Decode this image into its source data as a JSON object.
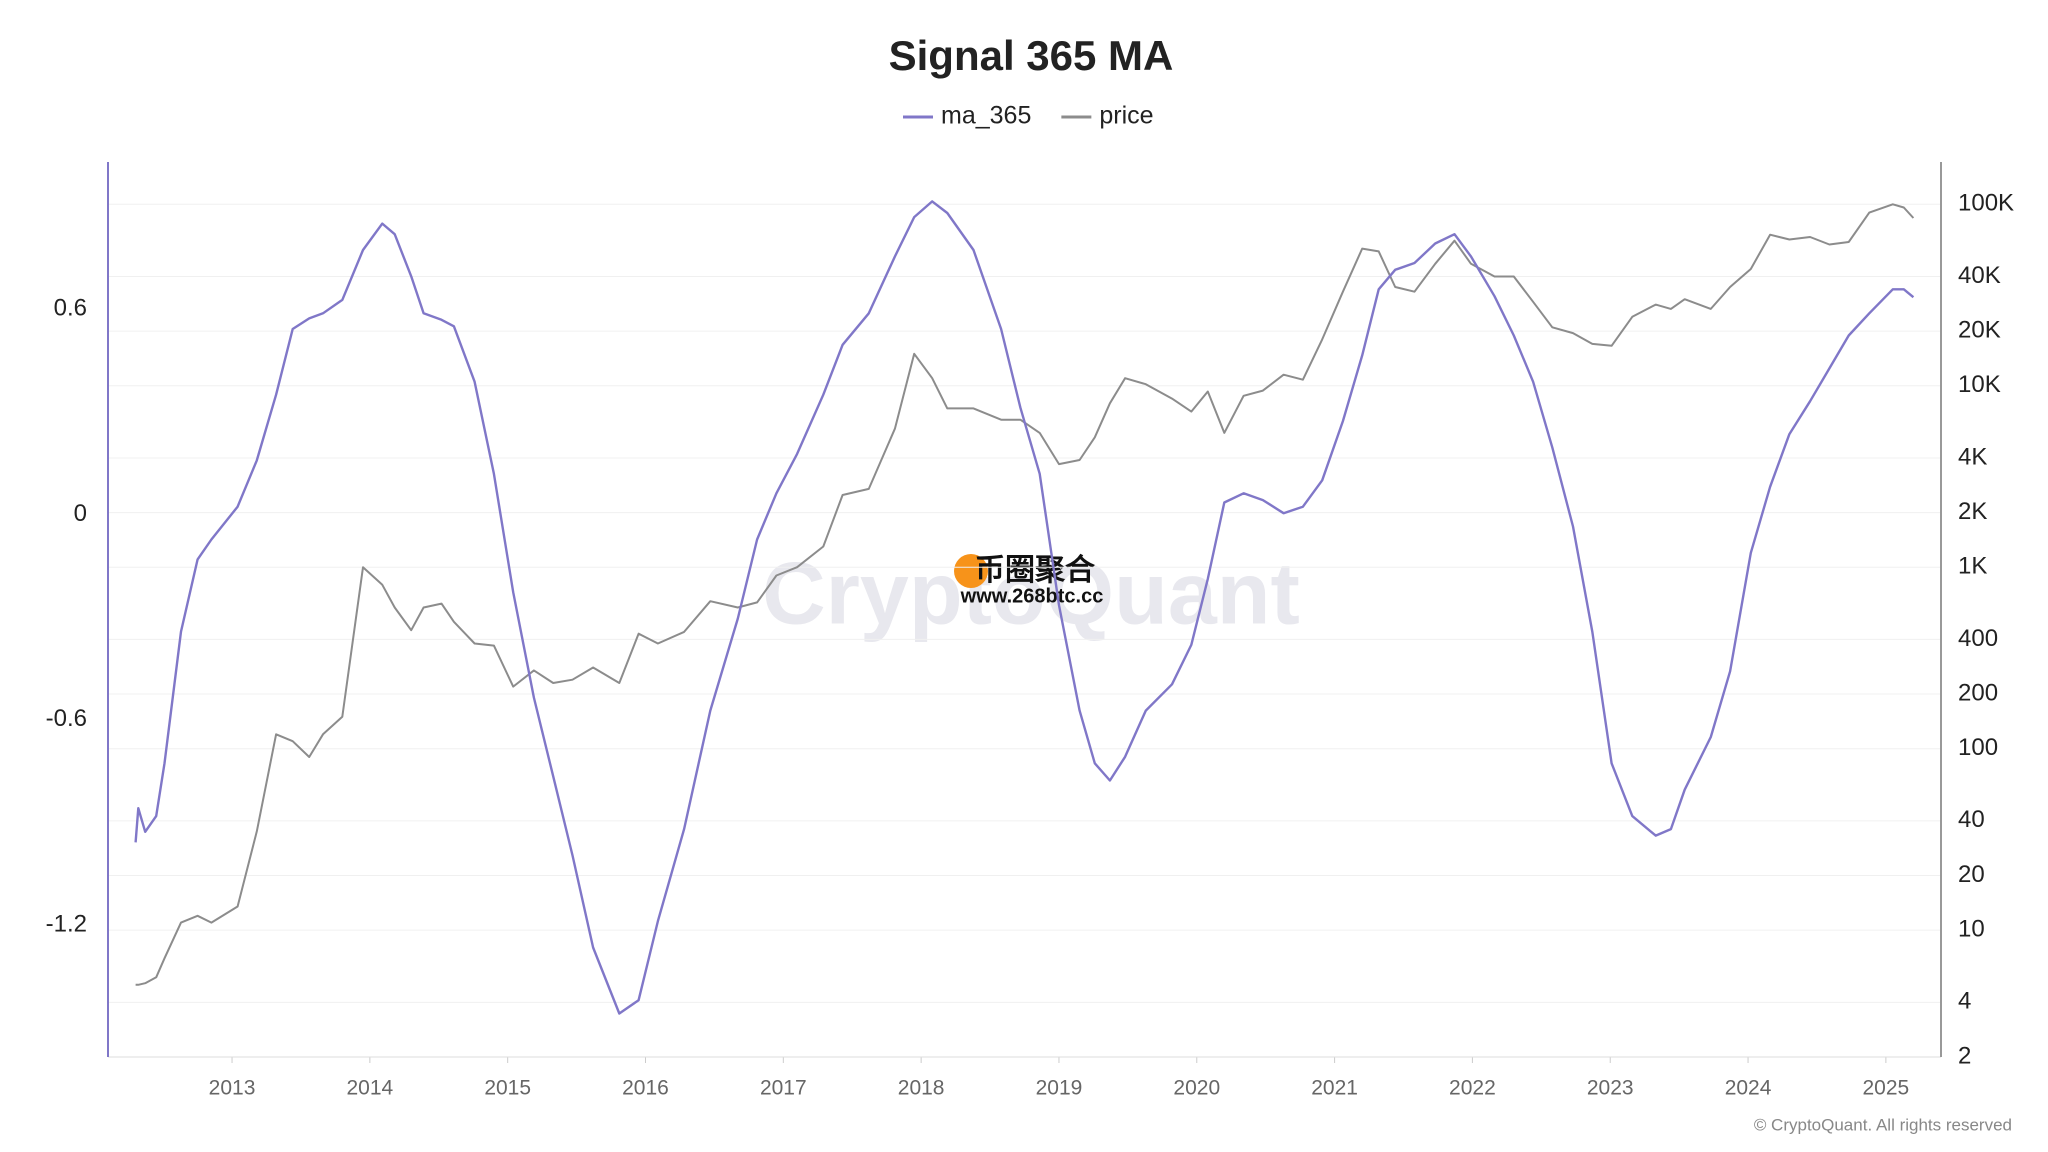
{
  "chart_data": {
    "type": "line",
    "title": "Signal 365 MA",
    "x": [
      2012.3,
      2012.32,
      2012.37,
      2012.45,
      2012.51,
      2012.63,
      2012.75,
      2012.85,
      2013.04,
      2013.18,
      2013.32,
      2013.44,
      2013.56,
      2013.66,
      2013.8,
      2013.95,
      2014.09,
      2014.18,
      2014.3,
      2014.39,
      2014.52,
      2014.61,
      2014.76,
      2014.9,
      2015.04,
      2015.19,
      2015.33,
      2015.47,
      2015.62,
      2015.81,
      2015.95,
      2016.09,
      2016.28,
      2016.47,
      2016.67,
      2016.81,
      2016.95,
      2017.1,
      2017.29,
      2017.43,
      2017.62,
      2017.81,
      2017.95,
      2018.08,
      2018.19,
      2018.38,
      2018.58,
      2018.72,
      2018.86,
      2019.0,
      2019.15,
      2019.26,
      2019.37,
      2019.48,
      2019.63,
      2019.82,
      2019.96,
      2020.08,
      2020.2,
      2020.34,
      2020.48,
      2020.63,
      2020.77,
      2020.91,
      2021.06,
      2021.2,
      2021.32,
      2021.44,
      2021.58,
      2021.73,
      2021.87,
      2021.99,
      2022.16,
      2022.3,
      2022.44,
      2022.58,
      2022.73,
      2022.87,
      2023.01,
      2023.16,
      2023.33,
      2023.44,
      2023.54,
      2023.73,
      2023.87,
      2024.02,
      2024.16,
      2024.3,
      2024.45,
      2024.59,
      2024.73,
      2024.88,
      2025.05,
      2025.13,
      2025.2
    ],
    "series": [
      {
        "name": "ma_365",
        "color": "#8077c8",
        "values": [
          -0.958,
          -0.858,
          -0.927,
          -0.881,
          -0.727,
          -0.342,
          -0.131,
          -0.073,
          0.023,
          0.158,
          0.35,
          0.542,
          0.573,
          0.588,
          0.627,
          0.773,
          0.85,
          0.819,
          0.696,
          0.588,
          0.569,
          0.55,
          0.388,
          0.119,
          -0.227,
          -0.535,
          -0.765,
          -0.996,
          -1.265,
          -1.458,
          -1.419,
          -1.188,
          -0.919,
          -0.573,
          -0.304,
          -0.073,
          0.062,
          0.177,
          0.35,
          0.496,
          0.588,
          0.754,
          0.869,
          0.915,
          0.881,
          0.773,
          0.542,
          0.312,
          0.119,
          -0.265,
          -0.573,
          -0.727,
          -0.777,
          -0.708,
          -0.573,
          -0.496,
          -0.381,
          -0.188,
          0.035,
          0.062,
          0.042,
          0.004,
          0.023,
          0.1,
          0.273,
          0.465,
          0.658,
          0.715,
          0.735,
          0.792,
          0.819,
          0.754,
          0.638,
          0.523,
          0.388,
          0.196,
          -0.035,
          -0.342,
          -0.727,
          -0.881,
          -0.938,
          -0.919,
          -0.804,
          -0.65,
          -0.458,
          -0.112,
          0.081,
          0.235,
          0.331,
          0.427,
          0.523,
          0.588,
          0.658,
          0.658,
          0.635
        ]
      },
      {
        "name": "price",
        "color": "#8c8c8c",
        "axis": "y2",
        "values": [
          5,
          5,
          5.1,
          5.5,
          7,
          11,
          12,
          11,
          13.5,
          35,
          120,
          110,
          90,
          120,
          150,
          1000,
          800,
          600,
          450,
          600,
          630,
          500,
          380,
          370,
          220,
          270,
          230,
          240,
          280,
          230,
          430,
          380,
          440,
          650,
          600,
          640,
          900,
          1000,
          1300,
          2500,
          2700,
          5800,
          15000,
          11000,
          7500,
          7500,
          6500,
          6500,
          5500,
          3700,
          3900,
          5200,
          8000,
          11000,
          10200,
          8500,
          7200,
          9300,
          5500,
          8800,
          9400,
          11500,
          10800,
          18000,
          33000,
          57000,
          55000,
          35000,
          33000,
          47000,
          63000,
          47000,
          40000,
          40000,
          29000,
          21000,
          19500,
          17000,
          16600,
          24000,
          28000,
          26500,
          30000,
          26500,
          35000,
          44000,
          68000,
          64000,
          66000,
          60000,
          62000,
          90000,
          100000,
          96000,
          84000
        ]
      }
    ],
    "xlim": [
      2012.1,
      2025.4
    ],
    "xticks": [
      2013,
      2014,
      2015,
      2016,
      2017,
      2018,
      2019,
      2020,
      2021,
      2022,
      2023,
      2024,
      2025
    ],
    "ylim": [
      -1.585,
      1.03
    ],
    "yticks": [
      0.6,
      0,
      -0.6,
      -1.2
    ],
    "y2lim": [
      2,
      171000
    ],
    "y2scale": "log",
    "y2ticks": [
      2,
      4,
      10,
      20,
      40,
      100,
      200,
      400,
      {
        "value": 1000,
        "label": "1K"
      },
      {
        "value": 2000,
        "label": "2K"
      },
      {
        "value": 4000,
        "label": "4K"
      },
      {
        "value": 10000,
        "label": "10K"
      },
      {
        "value": 20000,
        "label": "20K"
      },
      {
        "value": 40000,
        "label": "40K"
      },
      {
        "value": 100000,
        "label": "100K"
      }
    ],
    "grid": true,
    "watermark": "CryptoQuant",
    "overlay": [
      "币圈聚合",
      "www.268btc.cc"
    ],
    "copyright": "© CryptoQuant. All rights reserved"
  }
}
